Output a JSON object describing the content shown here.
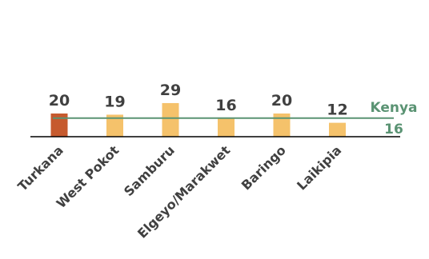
{
  "chart_data": {
    "type": "bar",
    "categories": [
      "Turkana",
      "West Pokot",
      "Samburu",
      "Elgeyo/Marakwet",
      "Baringo",
      "Laikipia"
    ],
    "values": [
      20,
      19,
      29,
      16,
      20,
      12
    ],
    "value_labels": [
      "20",
      "19",
      "29",
      "16",
      "20",
      "12"
    ],
    "reference_line": {
      "label": "Kenya",
      "value": 16,
      "value_label": "16",
      "color": "#5a9373"
    },
    "colors": {
      "highlight": "#c65a2e",
      "default": "#f5c26b",
      "axis": "#000000",
      "text": "#404040"
    },
    "highlight_index": 0,
    "ylim": [
      0,
      29
    ],
    "grid": false,
    "legend": "none"
  }
}
